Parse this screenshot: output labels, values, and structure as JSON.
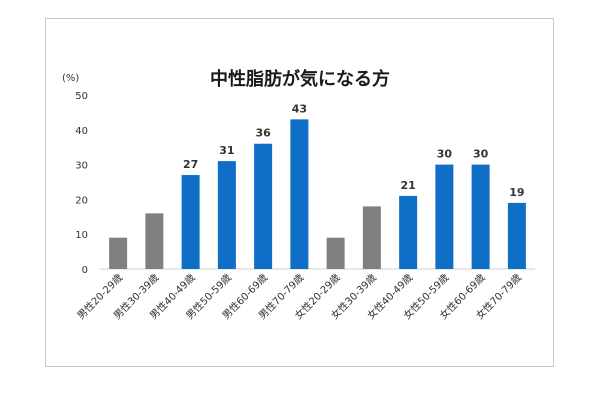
{
  "chart_data": {
    "type": "bar",
    "title": "中性脂肪が気になる方",
    "unit_label": "(%)",
    "xlabel": "",
    "ylabel": "",
    "ylim": [
      0,
      50
    ],
    "yticks": [
      "0",
      "10",
      "20",
      "30",
      "40",
      "50"
    ],
    "grid": false,
    "legend": "none",
    "categories": [
      "男性20-29歳",
      "男性30-39歳",
      "男性40-49歳",
      "男性50-59歳",
      "男性60-69歳",
      "男性70-79歳",
      "女性20-29歳",
      "女性30-39歳",
      "女性40-49歳",
      "女性50-59歳",
      "女性60-69歳",
      "女性70-79歳"
    ],
    "values": [
      9,
      16,
      27,
      31,
      36,
      43,
      9,
      18,
      21,
      30,
      30,
      19
    ],
    "data_labels": [
      "",
      "",
      "27",
      "31",
      "36",
      "43",
      "",
      "",
      "21",
      "30",
      "30",
      "19"
    ],
    "bar_colors": [
      "#808080",
      "#808080",
      "#0f6fc6",
      "#0f6fc6",
      "#0f6fc6",
      "#0f6fc6",
      "#808080",
      "#808080",
      "#0f6fc6",
      "#0f6fc6",
      "#0f6fc6",
      "#0f6fc6"
    ]
  }
}
